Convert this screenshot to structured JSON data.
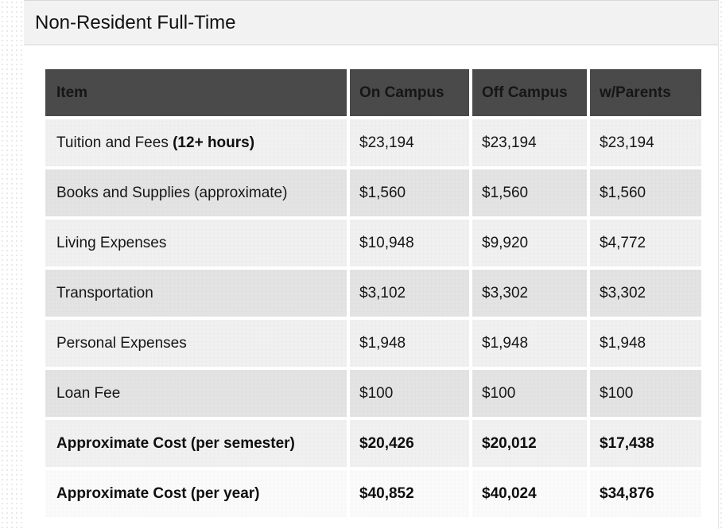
{
  "page": {
    "title": "Non-Resident Full-Time"
  },
  "table": {
    "columns": [
      "Item",
      "On Campus",
      "Off Campus",
      "w/Parents"
    ],
    "rows": [
      {
        "item": "Tuition and Fees ",
        "item_bold_suffix": "(12+ hours)",
        "on_campus": "$23,194",
        "off_campus": "$23,194",
        "w_parents": "$23,194",
        "bold": false
      },
      {
        "item": "Books and Supplies (approximate)",
        "item_bold_suffix": "",
        "on_campus": "$1,560",
        "off_campus": "$1,560",
        "w_parents": "$1,560",
        "bold": false
      },
      {
        "item": "Living Expenses",
        "item_bold_suffix": "",
        "on_campus": "$10,948",
        "off_campus": "$9,920",
        "w_parents": "$4,772",
        "bold": false
      },
      {
        "item": "Transportation",
        "item_bold_suffix": "",
        "on_campus": "$3,102",
        "off_campus": "$3,302",
        "w_parents": "$3,302",
        "bold": false
      },
      {
        "item": "Personal Expenses",
        "item_bold_suffix": "",
        "on_campus": "$1,948",
        "off_campus": "$1,948",
        "w_parents": "$1,948",
        "bold": false
      },
      {
        "item": "Loan Fee",
        "item_bold_suffix": "",
        "on_campus": "$100",
        "off_campus": "$100",
        "w_parents": "$100",
        "bold": false
      },
      {
        "item": "Approximate Cost (per semester)",
        "item_bold_suffix": "",
        "on_campus": "$20,426",
        "off_campus": "$20,012",
        "w_parents": "$17,438",
        "bold": true
      },
      {
        "item": "Approximate Cost (per year)",
        "item_bold_suffix": "",
        "on_campus": "$40,852",
        "off_campus": "$40,024",
        "w_parents": "$34,876",
        "bold": true
      }
    ],
    "colors": {
      "header_bg": "#4a4a4a",
      "header_text": "#ffffff",
      "row_light": "#f0f0f0",
      "row_dark": "#e3e3e3",
      "row_last": "#fafafa",
      "body_text": "#161616",
      "title_bar_bg": "#f2f2f2"
    }
  }
}
